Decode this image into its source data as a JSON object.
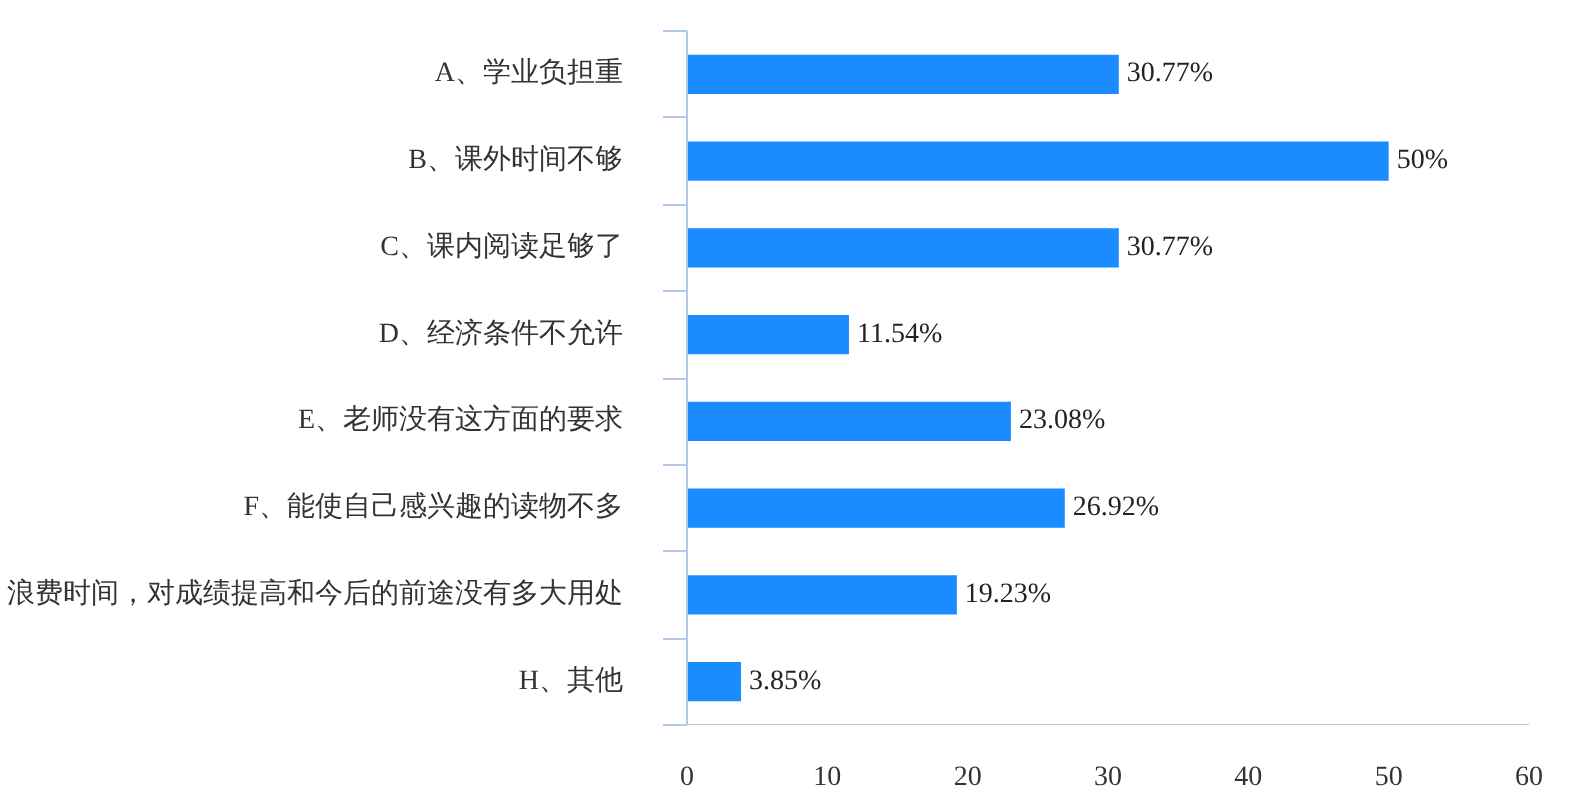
{
  "chart_data": {
    "type": "bar",
    "orientation": "horizontal",
    "categories": [
      "A、学业负担重",
      "B、课外时间不够",
      "C、课内阅读足够了",
      "D、经济条件不允许",
      "E、老师没有这方面的要求",
      "F、能使自己感兴趣的读物不多",
      "浪费时间，对成绩提高和今后的前途没有多大用处",
      "H、其他"
    ],
    "values": [
      30.77,
      50,
      30.77,
      11.54,
      23.08,
      26.92,
      19.23,
      3.85
    ],
    "value_labels": [
      "30.77%",
      "50%",
      "30.77%",
      "11.54%",
      "23.08%",
      "26.92%",
      "19.23%",
      "3.85%"
    ],
    "color": "#1a8cff",
    "xlim": [
      0,
      60
    ],
    "xticks": [
      0,
      10,
      20,
      30,
      40,
      50,
      60
    ],
    "grid": false
  }
}
